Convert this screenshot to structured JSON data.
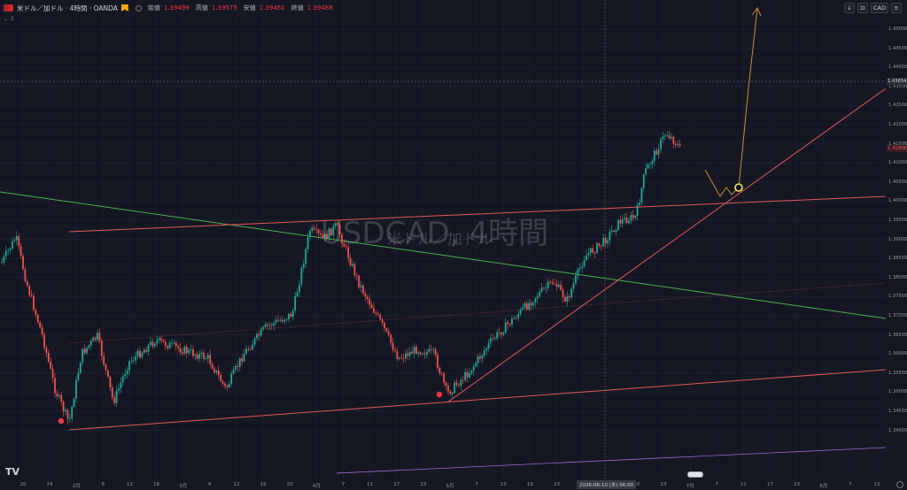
{
  "header": {
    "symbol": "米ドル／加ドル · 4時間 · OANDA",
    "sub": "3",
    "ohlc": [
      {
        "label": "始値",
        "value": "1.39499"
      },
      {
        "label": "高値",
        "value": "1.39575"
      },
      {
        "label": "安値",
        "value": "1.39461"
      },
      {
        "label": "終値",
        "value": "1.39488"
      }
    ]
  },
  "toolbar": {
    "currency": "CAD"
  },
  "watermark": {
    "title": "USDCAD, 4時間",
    "subtitle": "米ドル／加ドル"
  },
  "price_axis": {
    "ticks": [
      "1.45000",
      "1.44500",
      "1.44000",
      "1.43500",
      "1.42500",
      "1.42000",
      "1.41500",
      "1.41000",
      "1.40500",
      "1.40000",
      "1.39500",
      "1.39000",
      "1.38500",
      "1.38000",
      "1.37500",
      "1.37000",
      "1.36500",
      "1.36000",
      "1.35500",
      "1.35000",
      "1.34500",
      "1.34000"
    ],
    "tag_top": "1.43654",
    "tag_current": "1.41956"
  },
  "time_axis": {
    "ticks": [
      "20",
      "24",
      "2月",
      "6",
      "12",
      "16",
      "3月",
      "6",
      "12",
      "16",
      "20",
      "4月",
      "7",
      "11",
      "17",
      "23",
      "5月",
      "7",
      "13",
      "19",
      "23",
      "6月",
      "4",
      "10",
      "23",
      "7月",
      "7",
      "11",
      "17",
      "23",
      "8月",
      "7",
      "13"
    ],
    "crosshair": "2026-06-10 (木) 06:00"
  },
  "chart_data": {
    "type": "line",
    "title": "USDCAD, 4時間",
    "xlabel": "",
    "ylabel": "",
    "ylim": [
      1.338,
      1.453
    ],
    "x": [
      "20",
      "24",
      "2月",
      "6",
      "12",
      "16",
      "3月",
      "6",
      "12",
      "16",
      "20",
      "4月",
      "7",
      "11",
      "17",
      "23",
      "5月",
      "7",
      "13",
      "19",
      "23",
      "6月",
      "4",
      "10",
      "23"
    ],
    "series": [
      {
        "values": [
          1.389,
          1.388,
          1.3765,
          1.3545,
          1.372,
          1.3565,
          1.37,
          1.3595,
          1.364,
          1.37,
          1.389,
          1.393,
          1.384,
          1.376,
          1.364,
          1.37,
          1.356,
          1.364,
          1.372,
          1.378,
          1.384,
          1.388,
          1.398,
          1.402,
          1.419
        ]
      }
    ]
  }
}
